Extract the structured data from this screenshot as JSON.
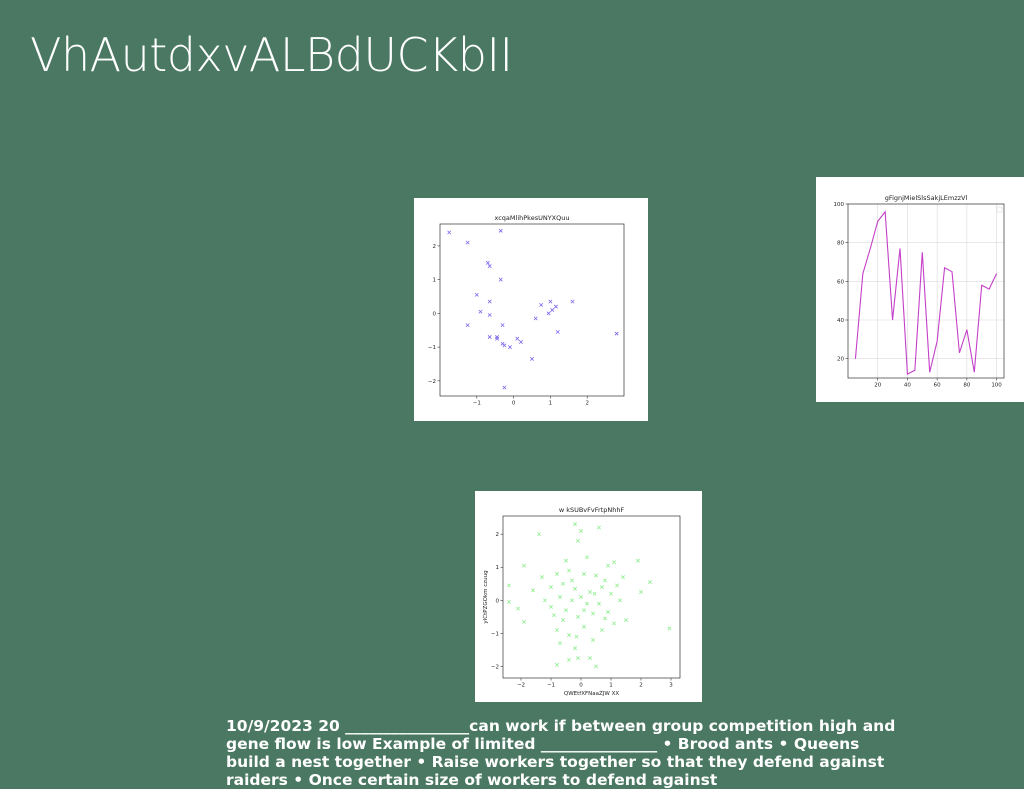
{
  "slide": {
    "title": "VhAutdxvALBdUCKbII",
    "body_text": "10/9/2023 20 ________________can work if between group competition high and gene flow is low Example of limited _______________ • Brood ants • Queens build a nest together • Raise workers together so that they defend against raiders • Once certain size of workers to defend against"
  },
  "chart_data": [
    {
      "type": "scatter",
      "title": "xcqaMlihPkesUNYXQuu",
      "xlabel": "",
      "ylabel": "",
      "marker": "x",
      "color": "#7b68ee",
      "xlim": [
        -2.0,
        3.0
      ],
      "ylim": [
        -2.45,
        2.65
      ],
      "xticks": [
        -1,
        0,
        1,
        2
      ],
      "yticks": [
        -2,
        -1,
        0,
        1,
        2
      ],
      "grid": false,
      "points": [
        [
          -1.75,
          2.4
        ],
        [
          -1.25,
          2.1
        ],
        [
          -0.35,
          2.45
        ],
        [
          -0.7,
          1.5
        ],
        [
          -0.65,
          1.4
        ],
        [
          -0.35,
          1.0
        ],
        [
          -1.0,
          0.55
        ],
        [
          -0.65,
          0.35
        ],
        [
          -0.9,
          0.05
        ],
        [
          -0.65,
          -0.05
        ],
        [
          -1.25,
          -0.35
        ],
        [
          -0.3,
          -0.35
        ],
        [
          -0.65,
          -0.7
        ],
        [
          -0.45,
          -0.75
        ],
        [
          -0.45,
          -0.7
        ],
        [
          -0.3,
          -0.9
        ],
        [
          -0.25,
          -0.95
        ],
        [
          -0.1,
          -1.0
        ],
        [
          0.1,
          -0.75
        ],
        [
          0.2,
          -0.85
        ],
        [
          0.5,
          -1.35
        ],
        [
          -0.25,
          -2.2
        ],
        [
          0.6,
          -0.15
        ],
        [
          0.75,
          0.25
        ],
        [
          0.95,
          0.0
        ],
        [
          1.05,
          0.1
        ],
        [
          1.0,
          0.35
        ],
        [
          1.15,
          0.2
        ],
        [
          1.2,
          -0.55
        ],
        [
          1.6,
          0.35
        ],
        [
          2.8,
          -0.6
        ]
      ]
    },
    {
      "type": "line",
      "title": "gFignjMielSlsSakjLEmzzVl",
      "xlabel": "",
      "ylabel": "",
      "color": "#c43fc8",
      "xlim": [
        0,
        105
      ],
      "ylim": [
        10,
        100
      ],
      "xticks": [
        20,
        40,
        60,
        80,
        100
      ],
      "yticks": [
        20,
        40,
        60,
        80,
        100
      ],
      "grid": true,
      "x": [
        5,
        10,
        15,
        20,
        25,
        30,
        35,
        40,
        45,
        50,
        55,
        60,
        65,
        70,
        75,
        80,
        85,
        90,
        95,
        100
      ],
      "y": [
        20,
        64,
        77,
        91,
        96,
        40,
        77,
        12,
        14,
        75,
        13,
        29,
        67,
        65,
        23,
        35,
        13,
        58,
        56,
        64
      ]
    },
    {
      "type": "scatter",
      "title": "w kSUBvFvFrtpNhhF",
      "xlabel": "QWEtfXFNaaZJW XX",
      "ylabel": "yICtPZGOkm czuug",
      "marker": "x",
      "color": "#90ee90",
      "xlim": [
        -2.6,
        3.3
      ],
      "ylim": [
        -2.35,
        2.55
      ],
      "xticks": [
        -2,
        -1,
        0,
        1,
        2,
        3
      ],
      "yticks": [
        -2,
        -1,
        0,
        1,
        2
      ],
      "grid": false,
      "points": [
        [
          -1.4,
          2.0
        ],
        [
          -0.2,
          2.3
        ],
        [
          0.6,
          2.2
        ],
        [
          0.0,
          2.1
        ],
        [
          -0.1,
          1.8
        ],
        [
          -1.9,
          1.05
        ],
        [
          -0.5,
          1.2
        ],
        [
          0.2,
          1.3
        ],
        [
          0.9,
          1.05
        ],
        [
          1.1,
          1.15
        ],
        [
          1.9,
          1.2
        ],
        [
          -1.3,
          0.7
        ],
        [
          -0.8,
          0.8
        ],
        [
          -0.4,
          0.9
        ],
        [
          0.1,
          0.8
        ],
        [
          0.5,
          0.75
        ],
        [
          0.8,
          0.6
        ],
        [
          1.4,
          0.7
        ],
        [
          2.3,
          0.55
        ],
        [
          -2.4,
          0.45
        ],
        [
          -1.6,
          0.3
        ],
        [
          -1.0,
          0.4
        ],
        [
          -0.6,
          0.5
        ],
        [
          -0.2,
          0.35
        ],
        [
          0.3,
          0.25
        ],
        [
          0.7,
          0.4
        ],
        [
          1.0,
          0.2
        ],
        [
          2.0,
          0.25
        ],
        [
          -2.4,
          -0.05
        ],
        [
          -2.1,
          -0.25
        ],
        [
          -1.2,
          0.0
        ],
        [
          -0.7,
          0.1
        ],
        [
          -0.3,
          0.0
        ],
        [
          0.2,
          -0.1
        ],
        [
          0.6,
          -0.1
        ],
        [
          1.3,
          0.0
        ],
        [
          -1.9,
          -0.65
        ],
        [
          -0.9,
          -0.45
        ],
        [
          -0.5,
          -0.3
        ],
        [
          -0.1,
          -0.5
        ],
        [
          0.4,
          -0.4
        ],
        [
          0.9,
          -0.35
        ],
        [
          1.5,
          -0.6
        ],
        [
          -0.8,
          -0.9
        ],
        [
          -0.4,
          -1.05
        ],
        [
          0.1,
          -0.8
        ],
        [
          0.7,
          -0.9
        ],
        [
          1.1,
          -0.7
        ],
        [
          -0.7,
          -1.3
        ],
        [
          -0.2,
          -1.45
        ],
        [
          0.4,
          -1.2
        ],
        [
          0.8,
          -0.55
        ],
        [
          -0.1,
          -1.75
        ],
        [
          -0.8,
          -1.95
        ],
        [
          -0.4,
          -1.8
        ],
        [
          0.3,
          -1.75
        ],
        [
          0.5,
          -2.0
        ],
        [
          2.95,
          -0.85
        ],
        [
          -0.3,
          0.6
        ],
        [
          0.0,
          0.1
        ],
        [
          -0.6,
          -0.6
        ],
        [
          0.1,
          -0.3
        ],
        [
          1.2,
          0.45
        ],
        [
          -1.0,
          -0.2
        ],
        [
          0.45,
          0.2
        ],
        [
          -0.15,
          -1.1
        ]
      ]
    }
  ]
}
